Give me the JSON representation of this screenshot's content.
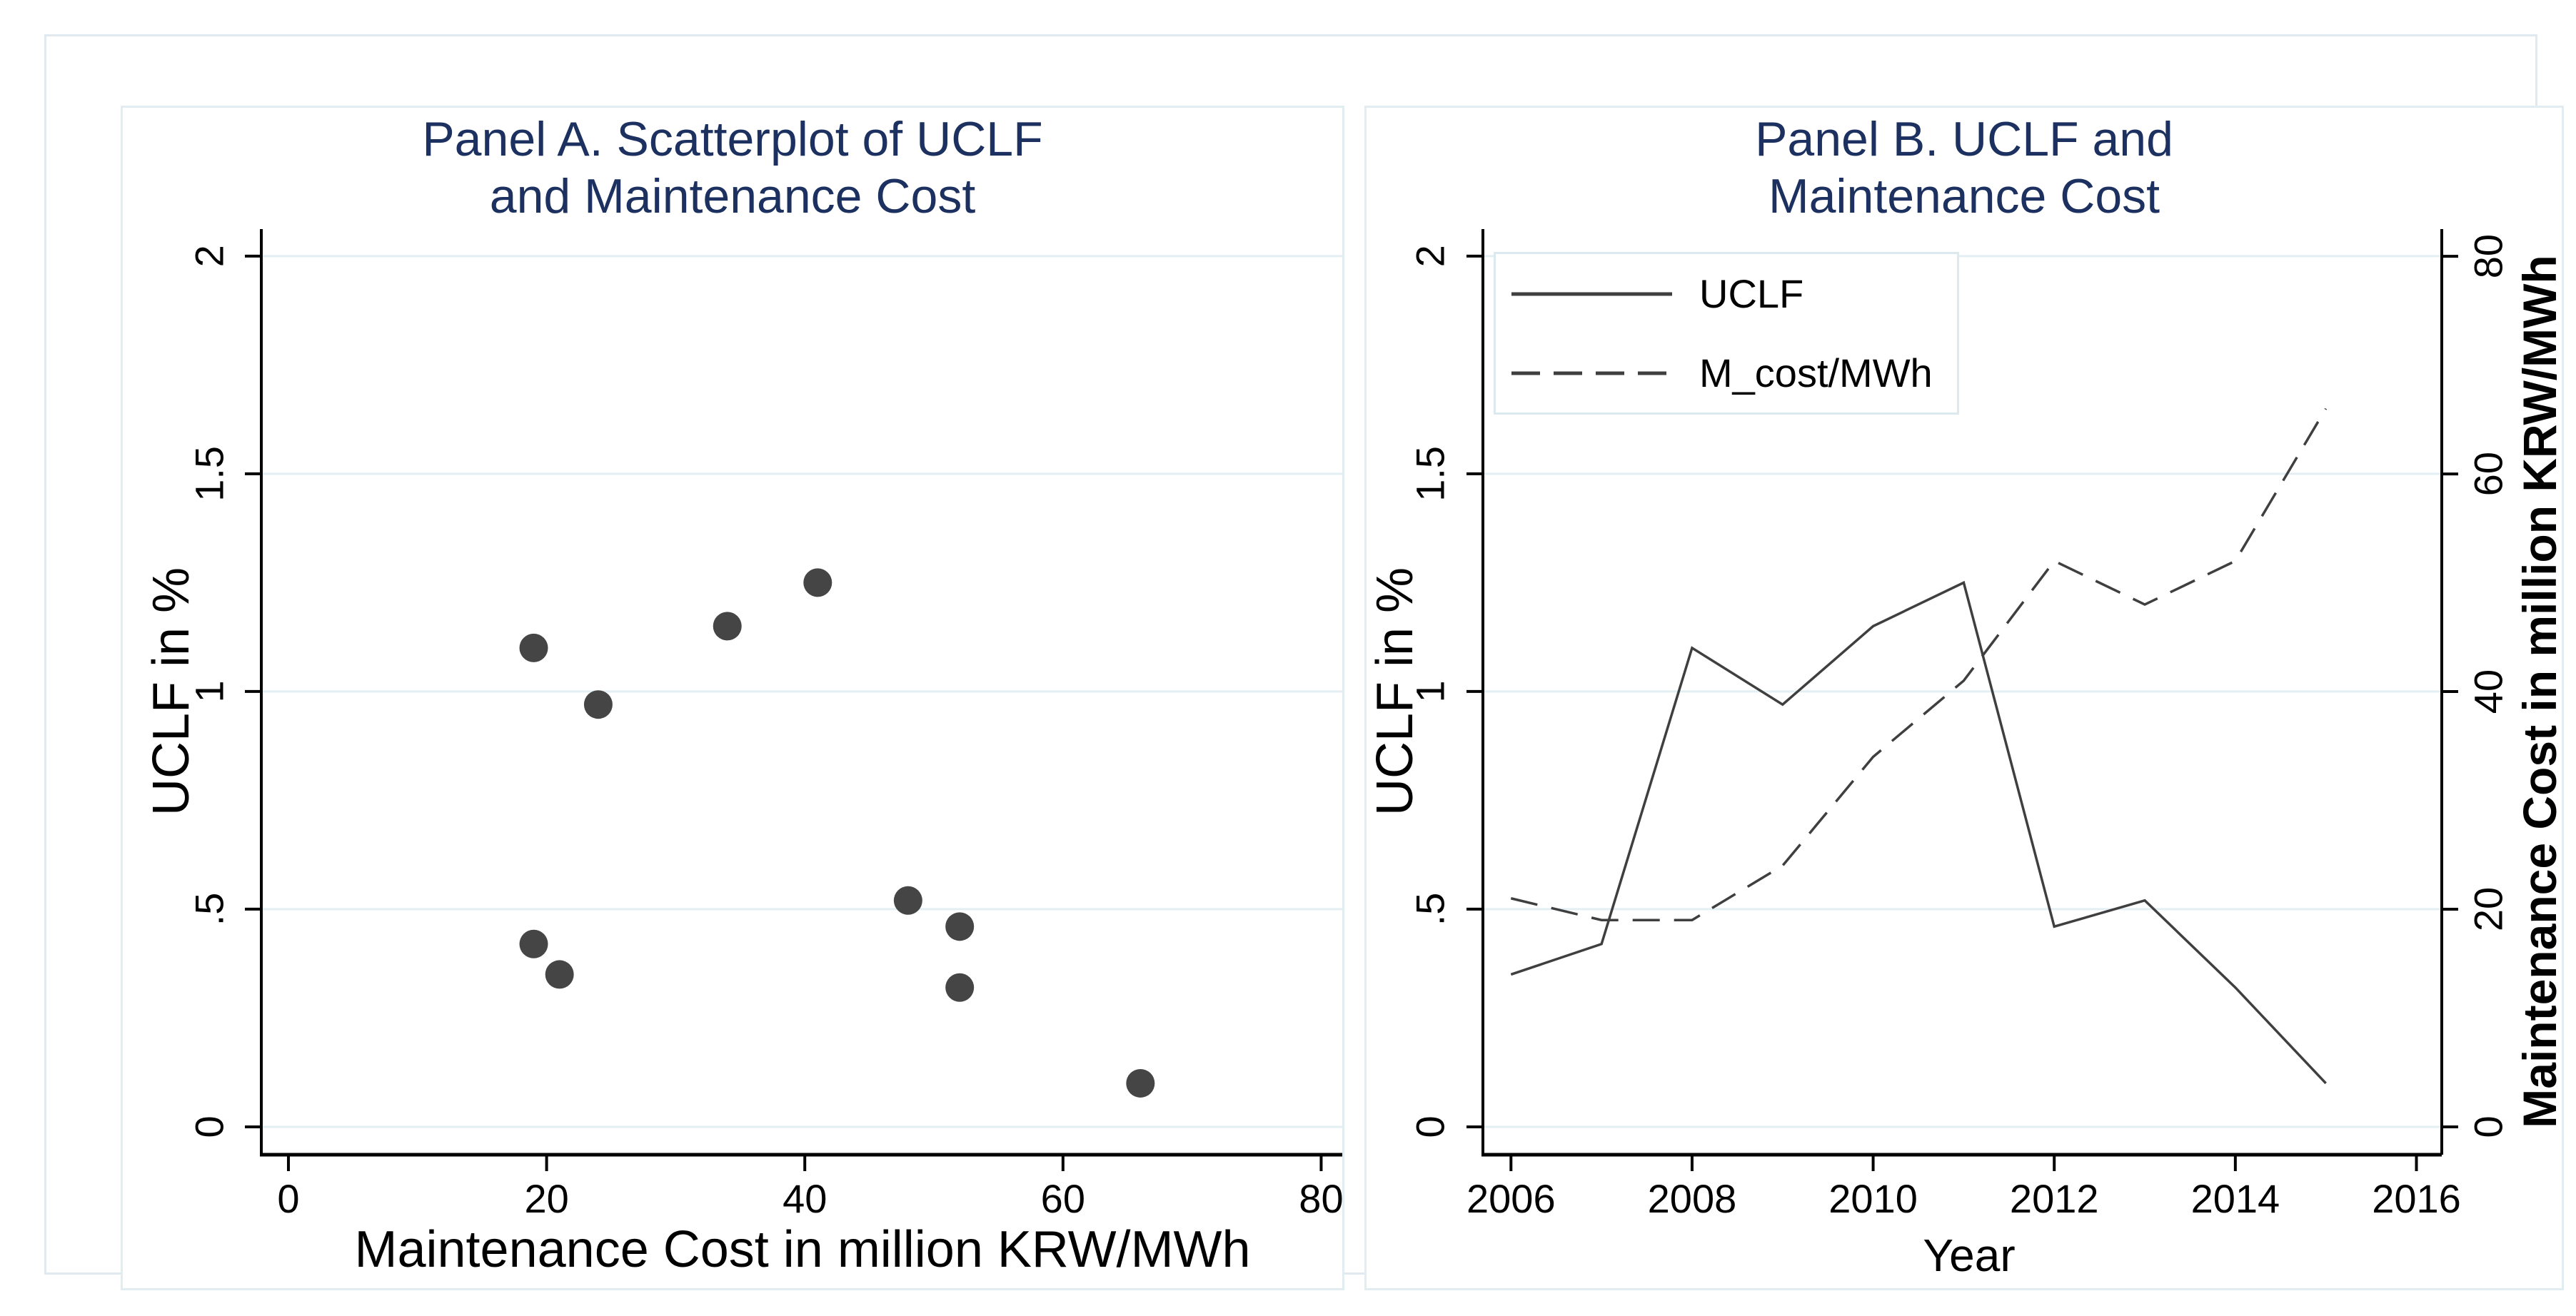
{
  "figure": {
    "background": "#ffffff",
    "outer_border_color": "#dfe9ef",
    "panel_border_color": "#e2edf2",
    "title_color": "#1d3160",
    "grid_color": "#e3eff3",
    "axis_color": "#000000",
    "data_color": "#454545",
    "line_color": "#3f3f3f"
  },
  "chart_data": [
    {
      "type": "scatter",
      "panel": "A",
      "title": "Panel A. Scatterplot of UCLF and Maintenance Cost",
      "title_lines": [
        "Panel A. Scatterplot of UCLF",
        "and Maintenance Cost"
      ],
      "xlabel": "Maintenance Cost in million KRW/MWh",
      "ylabel": "UCLF in %",
      "xlim": [
        -2.1,
        81.8
      ],
      "ylim": [
        -0.064,
        2.062
      ],
      "grid": "horizontal",
      "legend": "none",
      "x_ticks": {
        "values": [
          0,
          20,
          40,
          60,
          80
        ],
        "labels": [
          "0",
          "20",
          "40",
          "60",
          "80"
        ]
      },
      "y_ticks": {
        "values": [
          0,
          0.5,
          1,
          1.5,
          2
        ],
        "labels": [
          "0",
          ".5",
          "1",
          "1.5",
          "2"
        ]
      },
      "points": [
        {
          "year": 2006,
          "x": 21,
          "y": 0.35
        },
        {
          "year": 2007,
          "x": 19,
          "y": 0.42
        },
        {
          "year": 2008,
          "x": 19,
          "y": 1.1
        },
        {
          "year": 2009,
          "x": 24,
          "y": 0.97
        },
        {
          "year": 2010,
          "x": 34,
          "y": 1.15
        },
        {
          "year": 2011,
          "x": 41,
          "y": 1.25
        },
        {
          "year": 2012,
          "x": 52,
          "y": 0.46
        },
        {
          "year": 2013,
          "x": 48,
          "y": 0.52
        },
        {
          "year": 2014,
          "x": 52,
          "y": 0.32
        },
        {
          "year": 2015,
          "x": 66,
          "y": 0.1
        }
      ]
    },
    {
      "type": "line",
      "panel": "B",
      "title": "Panel B. UCLF and Maintenance Cost",
      "title_lines": [
        "Panel B. UCLF and",
        "Maintenance Cost"
      ],
      "xlabel": "Year",
      "ylabel_left": "UCLF in %",
      "ylabel_right": "Maintenance Cost in million KRW/MWh",
      "xlim": [
        2005.69,
        2016.28
      ],
      "ylim_left": [
        -0.064,
        2.062
      ],
      "ylim_right": [
        -2.56,
        82.5
      ],
      "grid": "horizontal",
      "x_ticks": {
        "values": [
          2006,
          2008,
          2010,
          2012,
          2014,
          2016
        ],
        "labels": [
          "2006",
          "2008",
          "2010",
          "2012",
          "2014",
          "2016"
        ]
      },
      "y_ticks_left": {
        "values": [
          0,
          0.5,
          1,
          1.5,
          2
        ],
        "labels": [
          "0",
          ".5",
          "1",
          "1.5",
          "2"
        ]
      },
      "y_ticks_right": {
        "values": [
          0,
          20,
          40,
          60,
          80
        ],
        "labels": [
          "0",
          "20",
          "40",
          "60",
          "80"
        ]
      },
      "x": [
        2006,
        2007,
        2008,
        2009,
        2010,
        2011,
        2012,
        2013,
        2014,
        2015
      ],
      "series": [
        {
          "name": "UCLF",
          "axis": "left",
          "line_style": "solid",
          "values": [
            0.35,
            0.42,
            1.1,
            0.97,
            1.15,
            1.25,
            0.46,
            0.52,
            0.32,
            0.1
          ]
        },
        {
          "name": "M_cost/MWh",
          "axis": "right",
          "line_style": "dashed",
          "values": [
            21,
            19,
            19,
            24,
            34,
            41,
            52,
            48,
            52,
            66
          ]
        }
      ],
      "legend": {
        "position": "top-left",
        "entries": [
          "UCLF",
          "M_cost/MWh"
        ]
      }
    }
  ]
}
